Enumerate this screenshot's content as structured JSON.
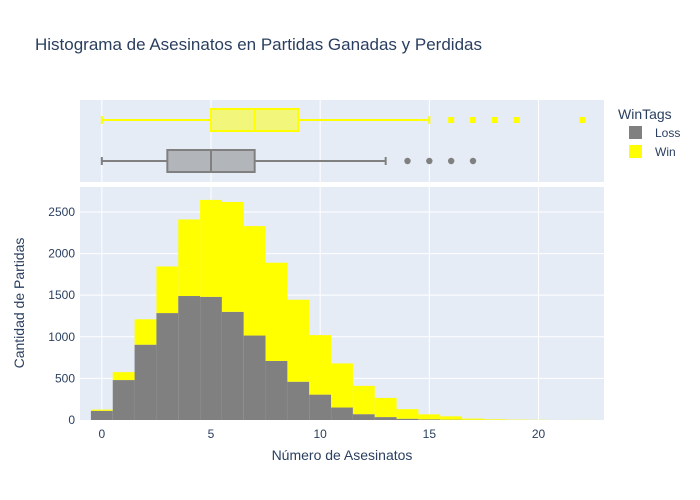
{
  "chart_data": {
    "type": "histogram",
    "title": "Histograma de Asesinatos en Partidas Ganadas y Perdidas",
    "xlabel": "Número de Asesinatos",
    "ylabel": "Cantidad de Partidas",
    "barmode": "stack",
    "bin_width": 1,
    "bin_starts": [
      -0.5,
      0.5,
      1.5,
      2.5,
      3.5,
      4.5,
      5.5,
      6.5,
      7.5,
      8.5,
      9.5,
      10.5,
      11.5,
      12.5,
      13.5,
      14.5,
      15.5,
      16.5,
      17.5,
      18.5,
      19.5,
      20.5,
      21.5
    ],
    "xlim": [
      -1,
      23
    ],
    "ylim": [
      0,
      2800
    ],
    "xticks": [
      0,
      5,
      10,
      15,
      20
    ],
    "yticks": [
      0,
      500,
      1000,
      1500,
      2000,
      2500
    ],
    "grid": true,
    "legend": {
      "title": "WinTags",
      "placement": "top-right",
      "items": [
        {
          "name": "Loss",
          "color": "#808080"
        },
        {
          "name": "Win",
          "color": "#ffff00"
        }
      ]
    },
    "series": [
      {
        "name": "Loss",
        "color": "#808080",
        "values": [
          110,
          480,
          905,
          1285,
          1490,
          1480,
          1300,
          1015,
          710,
          460,
          305,
          150,
          70,
          35,
          15,
          8,
          4,
          2,
          1,
          0,
          0,
          0,
          0
        ],
        "box": {
          "min": 0,
          "q1": 3,
          "median": 5,
          "q3": 7,
          "upper_fence": 13,
          "outliers": [
            14,
            15,
            16,
            17
          ]
        }
      },
      {
        "name": "Win",
        "color": "#ffff00",
        "values": [
          15,
          95,
          305,
          560,
          920,
          1165,
          1320,
          1315,
          1180,
          985,
          715,
          530,
          340,
          230,
          115,
          60,
          40,
          15,
          8,
          4,
          2,
          0,
          1
        ],
        "box": {
          "min": 0,
          "q1": 5,
          "median": 7,
          "q3": 9,
          "upper_fence": 15,
          "outliers": [
            16,
            17,
            18,
            19,
            22
          ]
        }
      }
    ]
  }
}
